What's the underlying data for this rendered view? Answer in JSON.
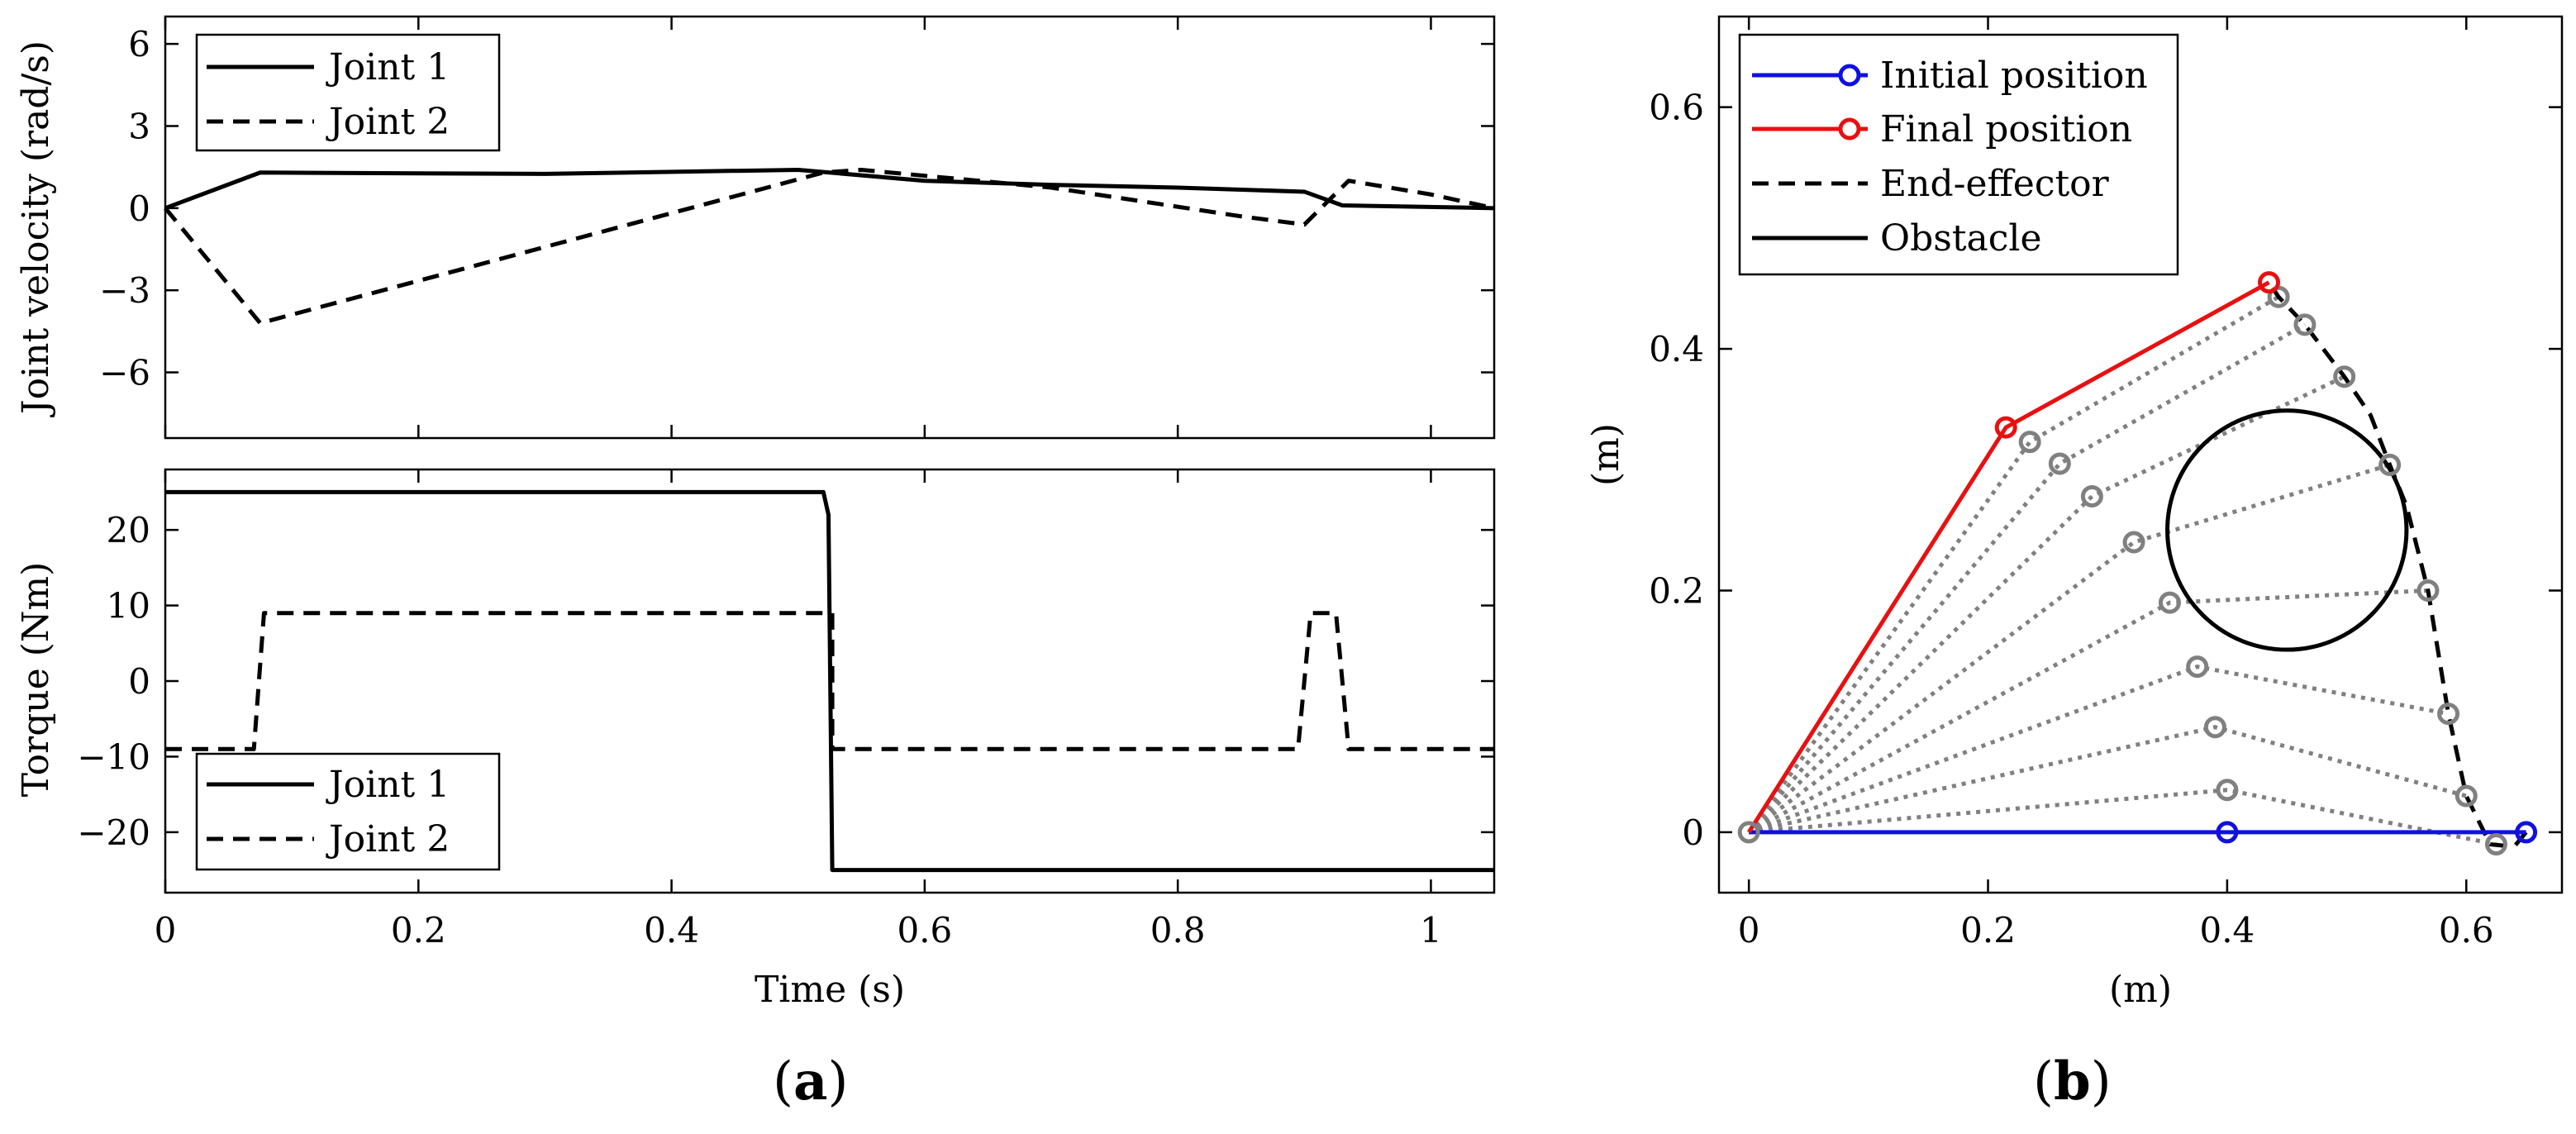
{
  "colors": {
    "joint1": "#000000",
    "joint2": "#000000",
    "initial": "#1010e0",
    "final": "#e81010",
    "intermediate": "#808080",
    "end_effector": "#000000",
    "obstacle": "#000000"
  },
  "captions": {
    "a": "a",
    "b": "b"
  },
  "chart_data": [
    {
      "id": "velocity",
      "type": "line",
      "panel": "a",
      "xlabel": "",
      "ylabel": "Joint velocity (rad/s)",
      "xlim": [
        0,
        1.05
      ],
      "ylim": [
        -8.4,
        7
      ],
      "xticks": [
        0,
        0.2,
        0.4,
        0.6,
        0.8,
        1
      ],
      "xtick_labels": [],
      "yticks": [
        6,
        3,
        0,
        -3,
        -6
      ],
      "ytick_labels": [
        "6",
        "3",
        "0",
        "−3",
        "−6"
      ],
      "legend": [
        "Joint 1",
        "Joint 2"
      ],
      "legend_position": "top-left",
      "series": [
        {
          "name": "Joint 1",
          "style": "solid",
          "x": [
            0,
            0.075,
            0.3,
            0.5,
            0.6,
            0.7,
            0.8,
            0.9,
            0.93,
            1.05
          ],
          "y": [
            0,
            1.3,
            1.25,
            1.4,
            1.0,
            0.85,
            0.75,
            0.6,
            0.1,
            0.0
          ]
        },
        {
          "name": "Joint 2",
          "style": "dashed",
          "x": [
            0,
            0.075,
            0.52,
            0.55,
            0.7,
            0.85,
            0.9,
            0.935,
            1.0,
            1.05
          ],
          "y": [
            0,
            -4.2,
            1.3,
            1.4,
            0.75,
            -0.3,
            -0.6,
            1.0,
            0.5,
            0.0
          ]
        }
      ]
    },
    {
      "id": "torque",
      "type": "line",
      "panel": "a",
      "xlabel": "Time (s)",
      "ylabel": "Torque (Nm)",
      "xlim": [
        0,
        1.05
      ],
      "ylim": [
        -28,
        28
      ],
      "xticks": [
        0,
        0.2,
        0.4,
        0.6,
        0.8,
        1
      ],
      "xtick_labels": [
        "0",
        "0.2",
        "0.4",
        "0.6",
        "0.8",
        "1"
      ],
      "yticks": [
        20,
        10,
        0,
        -10,
        -20
      ],
      "ytick_labels": [
        "20",
        "10",
        "0",
        "−10",
        "−20"
      ],
      "legend": [
        "Joint 1",
        "Joint 2"
      ],
      "legend_position": "bottom-left",
      "series": [
        {
          "name": "Joint 1",
          "style": "solid",
          "x": [
            0,
            0.52,
            0.524,
            0.527,
            1.05
          ],
          "y": [
            25,
            25,
            22,
            -25,
            -25
          ]
        },
        {
          "name": "Joint 2",
          "style": "dashed",
          "x": [
            0,
            0.07,
            0.078,
            0.527,
            0.527,
            0.895,
            0.905,
            0.925,
            0.935,
            1.05
          ],
          "y": [
            -9,
            -9,
            9,
            9,
            -9,
            -9,
            9,
            9,
            -9,
            -9
          ]
        }
      ]
    },
    {
      "id": "workspace",
      "type": "line",
      "panel": "b",
      "xlabel": "(m)",
      "ylabel": "(m)",
      "xlim": [
        -0.025,
        0.68
      ],
      "ylim": [
        -0.05,
        0.675
      ],
      "xticks": [
        0,
        0.2,
        0.4,
        0.6
      ],
      "xtick_labels": [
        "0",
        "0.2",
        "0.4",
        "0.6"
      ],
      "yticks": [
        0,
        0.2,
        0.4,
        0.6
      ],
      "ytick_labels": [
        "0",
        "0.2",
        "0.4",
        "0.6"
      ],
      "legend": [
        "Initial position",
        "Final position",
        "End-effector",
        "Obstacle"
      ],
      "legend_position": "top-left",
      "base": [
        0,
        0
      ],
      "initial_arm": {
        "elbow": [
          0.4,
          0
        ],
        "tip": [
          0.65,
          0
        ]
      },
      "final_arm": {
        "elbow": [
          0.215,
          0.335
        ],
        "tip": [
          0.435,
          0.455
        ]
      },
      "intermediate_arms": [
        {
          "elbow": [
            0.4,
            0.035
          ],
          "tip": [
            0.625,
            -0.01
          ]
        },
        {
          "elbow": [
            0.39,
            0.087
          ],
          "tip": [
            0.6,
            0.03
          ]
        },
        {
          "elbow": [
            0.375,
            0.137
          ],
          "tip": [
            0.585,
            0.098
          ]
        },
        {
          "elbow": [
            0.352,
            0.19
          ],
          "tip": [
            0.568,
            0.2
          ]
        },
        {
          "elbow": [
            0.322,
            0.24
          ],
          "tip": [
            0.536,
            0.304
          ]
        },
        {
          "elbow": [
            0.287,
            0.278
          ],
          "tip": [
            0.498,
            0.377
          ]
        },
        {
          "elbow": [
            0.26,
            0.305
          ],
          "tip": [
            0.465,
            0.42
          ]
        },
        {
          "elbow": [
            0.235,
            0.323
          ],
          "tip": [
            0.443,
            0.443
          ]
        }
      ],
      "end_effector_path": {
        "x": [
          0.65,
          0.64,
          0.62,
          0.6,
          0.585,
          0.568,
          0.55,
          0.536,
          0.52,
          0.498,
          0.465,
          0.443,
          0.435
        ],
        "y": [
          0,
          -0.012,
          -0.01,
          0.03,
          0.098,
          0.2,
          0.27,
          0.304,
          0.345,
          0.377,
          0.42,
          0.443,
          0.455
        ]
      },
      "obstacle": {
        "center": [
          0.45,
          0.25
        ],
        "radius": 0.1
      }
    }
  ]
}
